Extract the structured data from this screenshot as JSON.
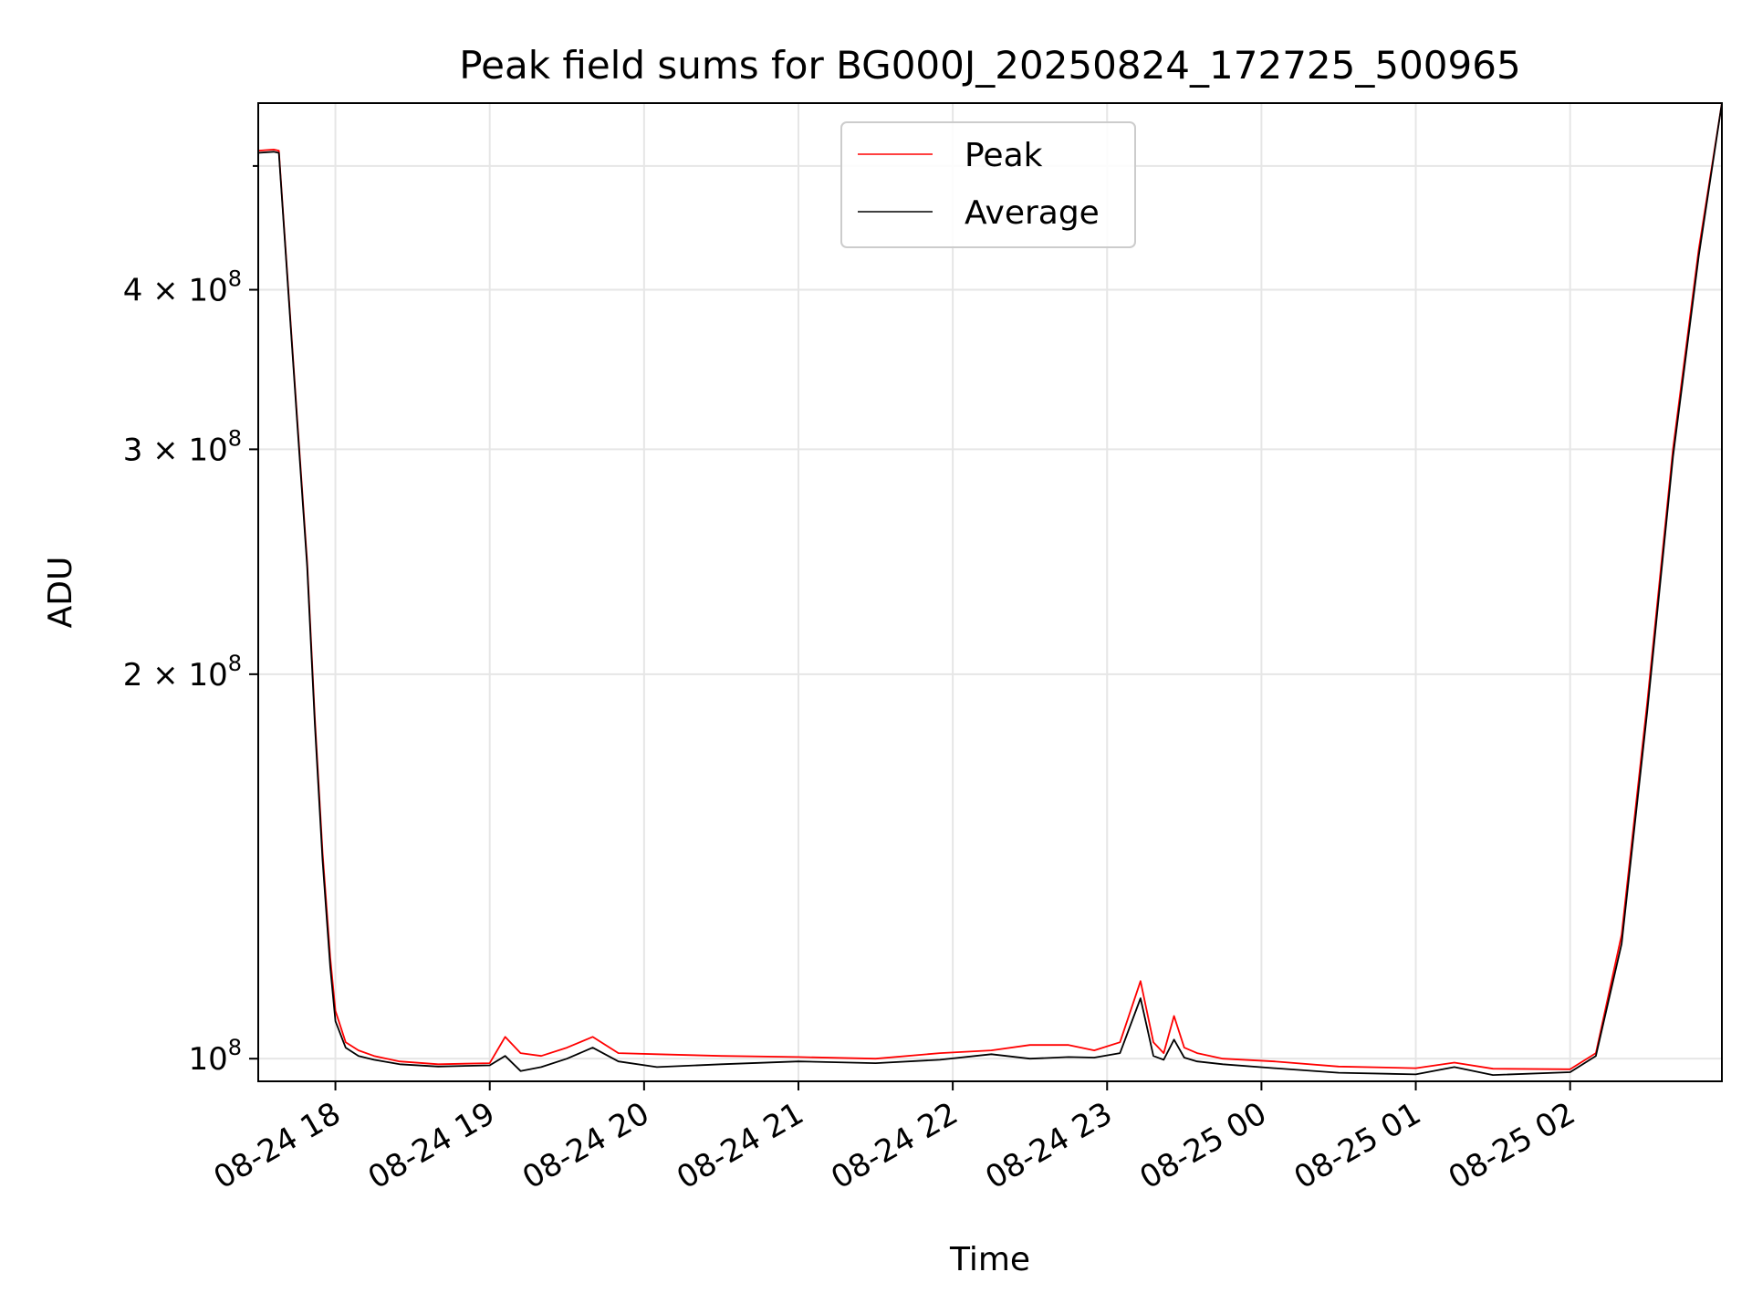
{
  "chart_data": {
    "type": "line",
    "title": "Peak field sums for BG000J_20250824_172725_500965",
    "xlabel": "Time",
    "ylabel": "ADU",
    "yscale": "log",
    "grid": true,
    "legend_position": "top-center",
    "xlim": [
      "2025-08-24 17:30",
      "2025-08-25 02:59"
    ],
    "ylim": [
      96000000.0,
      560000000.0
    ],
    "x_ticks": [
      {
        "value": "2025-08-24 18:00",
        "label": "08-24 18"
      },
      {
        "value": "2025-08-24 19:00",
        "label": "08-24 19"
      },
      {
        "value": "2025-08-24 20:00",
        "label": "08-24 20"
      },
      {
        "value": "2025-08-24 21:00",
        "label": "08-24 21"
      },
      {
        "value": "2025-08-24 22:00",
        "label": "08-24 22"
      },
      {
        "value": "2025-08-24 23:00",
        "label": "08-24 23"
      },
      {
        "value": "2025-08-25 00:00",
        "label": "08-25 00"
      },
      {
        "value": "2025-08-25 01:00",
        "label": "08-25 01"
      },
      {
        "value": "2025-08-25 02:00",
        "label": "08-25 02"
      }
    ],
    "y_ticks": [
      {
        "value": 100000000,
        "mantissa": "",
        "exponent": "8",
        "label": "10^8"
      },
      {
        "value": 200000000,
        "mantissa": "2",
        "exponent": "8",
        "label": "2×10^8"
      },
      {
        "value": 300000000,
        "mantissa": "3",
        "exponent": "8",
        "label": "3×10^8"
      },
      {
        "value": 400000000,
        "mantissa": "4",
        "exponent": "8",
        "label": "4×10^8"
      }
    ],
    "y_minor_ticks": [
      500000000
    ],
    "series": [
      {
        "name": "Peak",
        "color": "#ff0000",
        "x": [
          "2025-08-24 17:30",
          "2025-08-24 17:36",
          "2025-08-24 17:38",
          "2025-08-24 17:41",
          "2025-08-24 17:45",
          "2025-08-24 17:49",
          "2025-08-24 17:52",
          "2025-08-24 17:55",
          "2025-08-24 17:58",
          "2025-08-24 18:00",
          "2025-08-24 18:04",
          "2025-08-24 18:09",
          "2025-08-24 18:15",
          "2025-08-24 18:25",
          "2025-08-24 18:40",
          "2025-08-24 19:00",
          "2025-08-24 19:06",
          "2025-08-24 19:12",
          "2025-08-24 19:20",
          "2025-08-24 19:30",
          "2025-08-24 19:40",
          "2025-08-24 19:50",
          "2025-08-24 20:05",
          "2025-08-24 20:30",
          "2025-08-24 21:00",
          "2025-08-24 21:30",
          "2025-08-24 21:55",
          "2025-08-24 22:15",
          "2025-08-24 22:30",
          "2025-08-24 22:45",
          "2025-08-24 22:55",
          "2025-08-24 23:05",
          "2025-08-24 23:13",
          "2025-08-24 23:18",
          "2025-08-24 23:22",
          "2025-08-24 23:26",
          "2025-08-24 23:30",
          "2025-08-24 23:35",
          "2025-08-24 23:45",
          "2025-08-25 00:05",
          "2025-08-25 00:30",
          "2025-08-25 01:00",
          "2025-08-25 01:15",
          "2025-08-25 01:30",
          "2025-08-25 02:00",
          "2025-08-25 02:10",
          "2025-08-25 02:20",
          "2025-08-25 02:30",
          "2025-08-25 02:40",
          "2025-08-25 02:50",
          "2025-08-25 02:59"
        ],
        "y": [
          514000000,
          515000000,
          514000000,
          420000000,
          320000000,
          245000000,
          185000000,
          145000000,
          120000000,
          109000000,
          103000000,
          101500000,
          100500000,
          99500000,
          99000000,
          99200000,
          104000000,
          101000000,
          100500000,
          102000000,
          104000000,
          101000000,
          100800000,
          100500000,
          100300000,
          100000000,
          101000000,
          101500000,
          102500000,
          102500000,
          101500000,
          103000000,
          115000000,
          103000000,
          101000000,
          108000000,
          102000000,
          101000000,
          100000000,
          99500000,
          98600000,
          98300000,
          99300000,
          98200000,
          98100000,
          101000000,
          125000000,
          190000000,
          300000000,
          430000000,
          560000000
        ]
      },
      {
        "name": "Average",
        "color": "#000000",
        "x": [
          "2025-08-24 17:30",
          "2025-08-24 17:36",
          "2025-08-24 17:38",
          "2025-08-24 17:41",
          "2025-08-24 17:45",
          "2025-08-24 17:49",
          "2025-08-24 17:52",
          "2025-08-24 17:55",
          "2025-08-24 17:58",
          "2025-08-24 18:00",
          "2025-08-24 18:04",
          "2025-08-24 18:09",
          "2025-08-24 18:15",
          "2025-08-24 18:25",
          "2025-08-24 18:40",
          "2025-08-24 19:00",
          "2025-08-24 19:06",
          "2025-08-24 19:12",
          "2025-08-24 19:20",
          "2025-08-24 19:30",
          "2025-08-24 19:40",
          "2025-08-24 19:50",
          "2025-08-24 20:05",
          "2025-08-24 20:30",
          "2025-08-24 21:00",
          "2025-08-24 21:30",
          "2025-08-24 21:55",
          "2025-08-24 22:15",
          "2025-08-24 22:30",
          "2025-08-24 22:45",
          "2025-08-24 22:55",
          "2025-08-24 23:05",
          "2025-08-24 23:13",
          "2025-08-24 23:18",
          "2025-08-24 23:22",
          "2025-08-24 23:26",
          "2025-08-24 23:30",
          "2025-08-24 23:35",
          "2025-08-24 23:45",
          "2025-08-25 00:05",
          "2025-08-25 00:30",
          "2025-08-25 01:00",
          "2025-08-25 01:15",
          "2025-08-25 01:30",
          "2025-08-25 02:00",
          "2025-08-25 02:10",
          "2025-08-25 02:20",
          "2025-08-25 02:30",
          "2025-08-25 02:40",
          "2025-08-25 02:50",
          "2025-08-25 02:59"
        ],
        "y": [
          512000000,
          513000000,
          512000000,
          418000000,
          318000000,
          243000000,
          183000000,
          143000000,
          118000000,
          107000000,
          102000000,
          100500000,
          99800000,
          99000000,
          98600000,
          98800000,
          100500000,
          97800000,
          98500000,
          100000000,
          102000000,
          99500000,
          98500000,
          99000000,
          99500000,
          99200000,
          99800000,
          100800000,
          100000000,
          100300000,
          100200000,
          101000000,
          111500000,
          100500000,
          99800000,
          103500000,
          100200000,
          99500000,
          99000000,
          98300000,
          97500000,
          97200000,
          98500000,
          97100000,
          97600000,
          100500000,
          123000000,
          187000000,
          296000000,
          425000000,
          560000000
        ]
      }
    ]
  }
}
